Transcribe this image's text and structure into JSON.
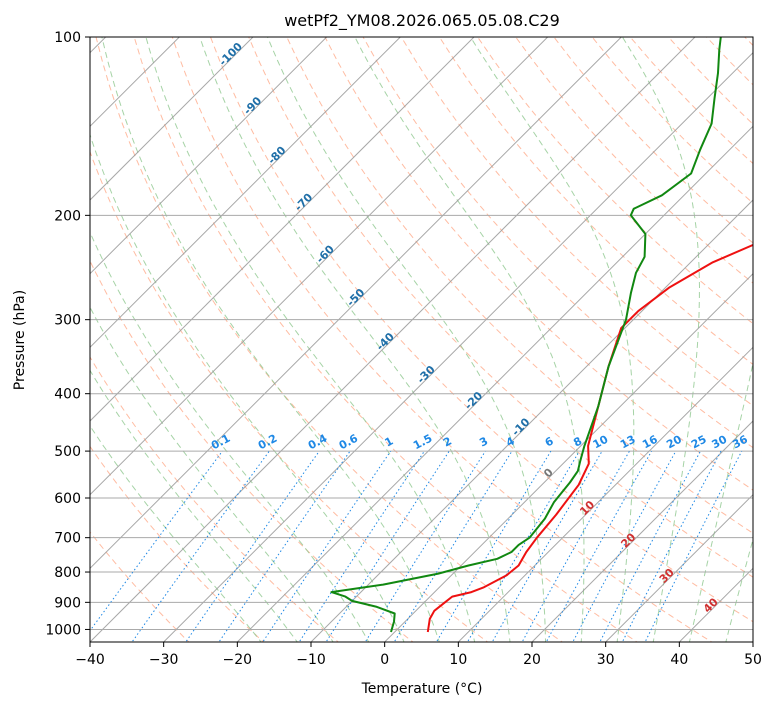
{
  "chart_data": {
    "type": "skew-t",
    "title": "wetPf2_YM08.2026.065.05.08.C29",
    "xlabel": "Temperature (°C)",
    "ylabel": "Pressure (hPa)",
    "xlim": [
      -40,
      50
    ],
    "ylim": [
      1050,
      100
    ],
    "x_ticks": [
      -40,
      -30,
      -20,
      -10,
      0,
      10,
      20,
      30,
      40,
      50
    ],
    "x_tick_labels": [
      "−40",
      "−30",
      "−20",
      "−10",
      "0",
      "10",
      "20",
      "30",
      "40",
      "50"
    ],
    "y_ticks": [
      100,
      200,
      300,
      400,
      500,
      600,
      700,
      800,
      900,
      1000
    ],
    "y_tick_labels": [
      "100",
      "200",
      "300",
      "400",
      "500",
      "600",
      "700",
      "800",
      "900",
      "1000"
    ],
    "colors": {
      "temperature": "#ee1111",
      "dewpoint": "#118811",
      "isotherm": "#999999",
      "dry_adiabat": "#ffa07a",
      "moist_adiabat": "#90c890",
      "mixing_ratio": "#1e88e5",
      "isotherm_label": "#1f6fa8",
      "adiabat_label": "#d03030"
    },
    "series": [
      {
        "name": "Temperature",
        "points": [
          [
            4.5,
            1010
          ],
          [
            3.0,
            960
          ],
          [
            2.5,
            930
          ],
          [
            2.8,
            900
          ],
          [
            3.0,
            880
          ],
          [
            5.0,
            865
          ],
          [
            6.0,
            850
          ],
          [
            7.5,
            810
          ],
          [
            7.8,
            780
          ],
          [
            7.0,
            740
          ],
          [
            6.5,
            700
          ],
          [
            6.0,
            640
          ],
          [
            5.0,
            570
          ],
          [
            3.5,
            525
          ],
          [
            1.0,
            490
          ],
          [
            -3.0,
            420
          ],
          [
            -7.0,
            360
          ],
          [
            -10.5,
            310
          ],
          [
            -10.5,
            290
          ],
          [
            -9.5,
            265
          ],
          [
            -7.0,
            240
          ],
          [
            -3.0,
            220
          ],
          [
            3.5,
            200
          ],
          [
            10.5,
            180
          ],
          [
            15.0,
            160
          ],
          [
            19.0,
            145
          ],
          [
            22.0,
            135
          ],
          [
            25.0,
            125
          ],
          [
            30.0,
            113
          ],
          [
            37.0,
            100
          ]
        ]
      },
      {
        "name": "Dewpoint",
        "points": [
          [
            -0.5,
            1010
          ],
          [
            -1.5,
            970
          ],
          [
            -2.5,
            940
          ],
          [
            -6.0,
            915
          ],
          [
            -10.0,
            895
          ],
          [
            -11.5,
            880
          ],
          [
            -14.0,
            865
          ],
          [
            -8.0,
            840
          ],
          [
            -2.0,
            805
          ],
          [
            1.0,
            780
          ],
          [
            4.0,
            760
          ],
          [
            5.0,
            740
          ],
          [
            5.0,
            720
          ],
          [
            5.5,
            700
          ],
          [
            5.0,
            650
          ],
          [
            4.0,
            610
          ],
          [
            3.5,
            565
          ],
          [
            3.0,
            540
          ],
          [
            2.0,
            520
          ],
          [
            0.5,
            490
          ],
          [
            -3.0,
            420
          ],
          [
            -7.0,
            360
          ],
          [
            -11.0,
            300
          ],
          [
            -14.0,
            270
          ],
          [
            -16.0,
            250
          ],
          [
            -17.0,
            235
          ],
          [
            -20.0,
            215
          ],
          [
            -24.5,
            200
          ],
          [
            -25.0,
            195
          ],
          [
            -23.0,
            185
          ],
          [
            -22.0,
            170
          ],
          [
            -24.0,
            155
          ],
          [
            -26.0,
            140
          ],
          [
            -29.0,
            127
          ],
          [
            -32.0,
            115
          ],
          [
            -35.0,
            105
          ],
          [
            -36.5,
            100
          ]
        ]
      }
    ],
    "isotherm_labels": [
      {
        "text": "-100",
        "t": -100
      },
      {
        "text": "-90",
        "t": -90
      },
      {
        "text": "-80",
        "t": -80
      },
      {
        "text": "-70",
        "t": -70
      },
      {
        "text": "-60",
        "t": -60
      },
      {
        "text": "-50",
        "t": -50
      },
      {
        "text": "-40",
        "t": -40
      },
      {
        "text": "-30",
        "t": -30
      },
      {
        "text": "-20",
        "t": -20
      },
      {
        "text": "-10",
        "t": -10
      },
      {
        "text": "0",
        "t": 0
      },
      {
        "text": "10",
        "t": 10
      },
      {
        "text": "20",
        "t": 20
      },
      {
        "text": "30",
        "t": 30
      },
      {
        "text": "40",
        "t": 40
      }
    ],
    "mixing_ratio_labels": [
      "0.1",
      "0.2",
      "0.4",
      "0.6",
      "1",
      "1.5",
      "2",
      "3",
      "4",
      "6",
      "8",
      "10",
      "13",
      "16",
      "20",
      "25",
      "30",
      "36"
    ],
    "mixing_ratio_values": [
      0.1,
      0.2,
      0.4,
      0.6,
      1,
      1.5,
      2,
      3,
      4,
      6,
      8,
      10,
      13,
      16,
      20,
      25,
      30,
      36
    ]
  }
}
